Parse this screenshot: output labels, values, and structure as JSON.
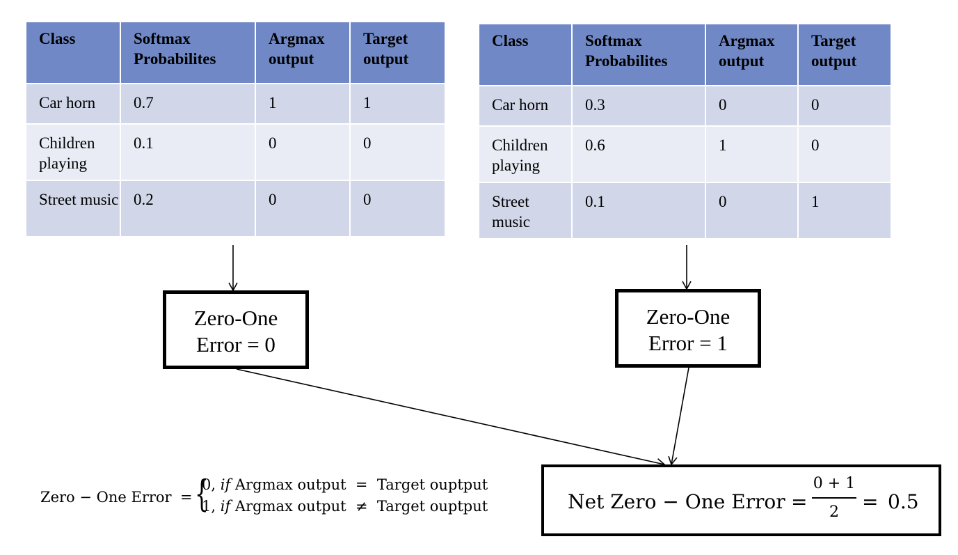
{
  "tables": {
    "left": {
      "headers": [
        "Class",
        "Softmax Probabilites",
        "Argmax output",
        "Target output"
      ],
      "rows": [
        {
          "class": "Car horn",
          "softmax": "0.7",
          "argmax": "1",
          "target": "1"
        },
        {
          "class": "Children playing",
          "softmax": "0.1",
          "argmax": "0",
          "target": "0"
        },
        {
          "class": "Street music",
          "softmax": "0.2",
          "argmax": "0",
          "target": "0"
        }
      ]
    },
    "right": {
      "headers": [
        "Class",
        "Softmax Probabilites",
        "Argmax output",
        "Target output"
      ],
      "rows": [
        {
          "class": "Car horn",
          "softmax": "0.3",
          "argmax": "0",
          "target": "0"
        },
        {
          "class": "Children playing",
          "softmax": "0.6",
          "argmax": "1",
          "target": "0"
        },
        {
          "class": "Street music",
          "softmax": "0.1",
          "argmax": "0",
          "target": "1"
        }
      ]
    }
  },
  "error_boxes": {
    "left": {
      "line1": "Zero-One",
      "line2": "Error = 0"
    },
    "right": {
      "line1": "Zero-One",
      "line2": "Error = 1"
    }
  },
  "net_error": {
    "label": "Net Zero − One Error",
    "equals": "=",
    "numerator": "0 + 1",
    "denominator": "2",
    "equals2": "=",
    "value": "0.5"
  },
  "formula": {
    "lhs": "Zero − One Error",
    "equals": "=",
    "case1_value": "0,",
    "case1_if": "if",
    "case1_condition": "Argmax output  =  Target ouptput",
    "case2_value": "1,",
    "case2_if": "if",
    "case2_condition": "Argmax output  ≠  Target ouptput"
  },
  "colors": {
    "header_fill": "#7089c6",
    "row_dark": "#d1d7e9",
    "row_light": "#e9ecf4"
  }
}
